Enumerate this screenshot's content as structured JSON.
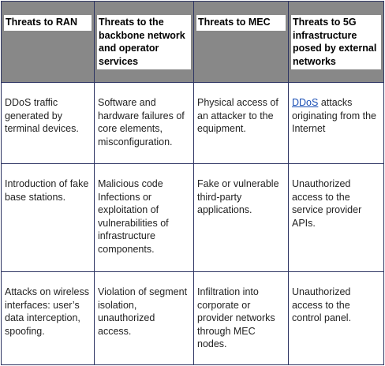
{
  "table": {
    "headers": [
      "Threats to RAN",
      "Threats to the backbone network and operator services",
      "Threats to MEC",
      "Threats to 5G infrastructure posed by external networks"
    ],
    "rows": [
      {
        "c1": "DDoS traffic generated by terminal devices.",
        "c2": "Software and hardware failures of core elements, misconfiguration.",
        "c3": "Physical access of an attacker to the equipment.",
        "c4_link": "DDoS",
        "c4_rest": " attacks originating from the Internet"
      },
      {
        "c1": "Introduction of fake base stations.",
        "c2": "Malicious code Infections or exploitation of vulnerabilities of infrastructure components.",
        "c3": "Fake or vulnerable third-party applications.",
        "c4": "Unauthorized access to the service provider APIs."
      },
      {
        "c1": "Attacks on wireless interfaces: user’s data interception, spoofing.",
        "c2": "Violation of segment isolation, unauthorized access.",
        "c3": "Infiltration into corporate or provider networks through MEC nodes.",
        "c4": "Unauthorized access to the control panel."
      }
    ]
  },
  "colors": {
    "header_background": "#888888",
    "border": "#2e3563",
    "link": "#1a4fb5"
  }
}
